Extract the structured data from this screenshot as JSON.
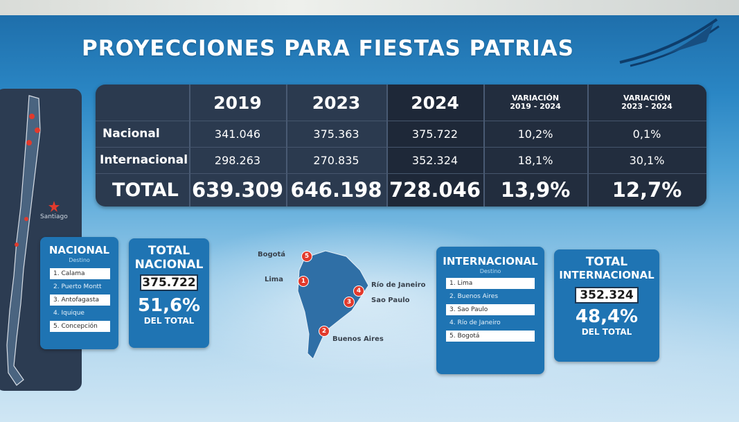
{
  "title": "PROYECCIONES PARA FIESTAS PATRIAS",
  "table": {
    "headers": {
      "y2019": "2019",
      "y2023": "2023",
      "y2024": "2024",
      "var1_line1": "VARIACIÓN",
      "var1_line2": "2019 - 2024",
      "var2_line1": "VARIACIÓN",
      "var2_line2": "2023 - 2024"
    },
    "rows": [
      {
        "label": "Nacional",
        "y2019": "341.046",
        "y2023": "375.363",
        "y2024": "375.722",
        "var1": "10,2%",
        "var2": "0,1%"
      },
      {
        "label": "Internacional",
        "y2019": "298.263",
        "y2023": "270.835",
        "y2024": "352.324",
        "var1": "18,1%",
        "var2": "30,1%"
      },
      {
        "label": "TOTAL",
        "y2019": "639.309",
        "y2023": "646.198",
        "y2024": "728.046",
        "var1": "13,9%",
        "var2": "12,7%"
      }
    ]
  },
  "map_chile": {
    "santiago_label": "Santiago"
  },
  "nacional_box": {
    "title": "NACIONAL",
    "subtitle": "Destino",
    "items": [
      "1. Calama",
      "2. Puerto Montt",
      "3. Antofagasta",
      "4. Iquique",
      "5. Concepción"
    ]
  },
  "total_nacional": {
    "title_line1": "TOTAL",
    "title_line2": "NACIONAL",
    "value": "375.722",
    "pct": "51,6%",
    "del_total": "DEL TOTAL"
  },
  "south_america_map": {
    "cities": [
      {
        "rank": "5",
        "name": "Bogotá"
      },
      {
        "rank": "1",
        "name": "Lima"
      },
      {
        "rank": "4",
        "name": "Río de Janeiro"
      },
      {
        "rank": "3",
        "name": "Sao Paulo"
      },
      {
        "rank": "2",
        "name": "Buenos Aires"
      }
    ]
  },
  "internacional_box": {
    "title": "INTERNACIONAL",
    "subtitle": "Destino",
    "items": [
      "1. Lima",
      "2. Buenos Aires",
      "3. Sao Paulo",
      "4. Río de Janeiro",
      "5. Bogotá"
    ]
  },
  "total_internacional": {
    "title_line1": "TOTAL",
    "title_line2": "INTERNACIONAL",
    "value": "352.324",
    "pct": "48,4%",
    "del_total": "DEL TOTAL"
  },
  "colors": {
    "panel_blue": "#2a86c4",
    "table_bg": "#2b3a4f",
    "box_blue": "#1f74b3",
    "pin_red": "#e23a2c"
  }
}
